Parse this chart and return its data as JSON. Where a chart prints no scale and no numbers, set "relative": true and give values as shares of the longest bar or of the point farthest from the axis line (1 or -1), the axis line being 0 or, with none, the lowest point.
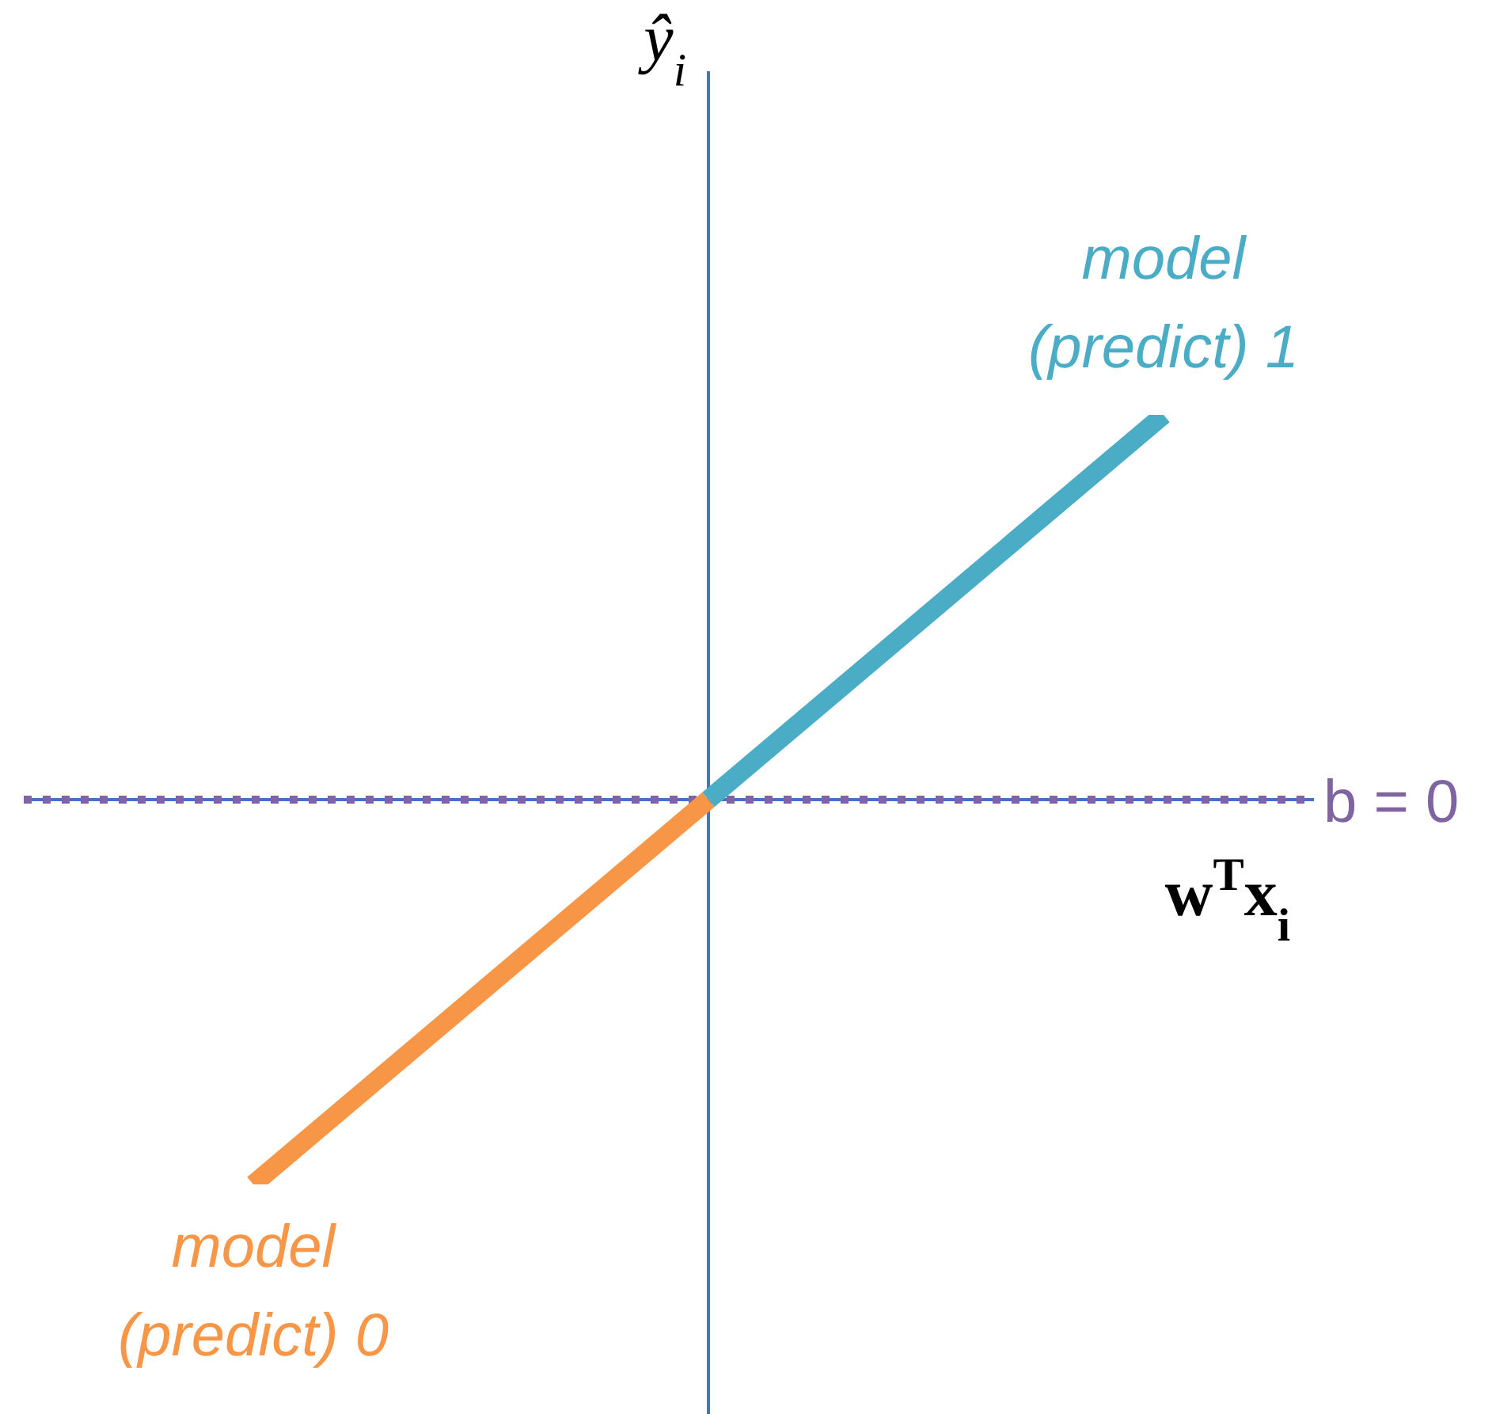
{
  "chart_data": {
    "type": "line",
    "relative": true,
    "xlabel": "w$^{T}$x$_{i}$",
    "ylabel": "ŷ$_{i}$",
    "categories": [
      null,
      null,
      null
    ],
    "series": [
      {
        "name": "model (predict) 0",
        "color": "#f79646",
        "values": [
          -1,
          0,
          null
        ]
      },
      {
        "name": "model (predict) 1",
        "color": "#4bacc6",
        "values": [
          null,
          0,
          1
        ]
      }
    ],
    "ref_lines": [
      {
        "axis": "y",
        "value": 0,
        "color": "#4472c4",
        "line_style": "solid"
      },
      {
        "axis": "y",
        "value": 0,
        "label": "b = 0",
        "color": "#8064a2",
        "line_style": "dotted"
      }
    ],
    "marker": "none",
    "line_style": "solid"
  }
}
